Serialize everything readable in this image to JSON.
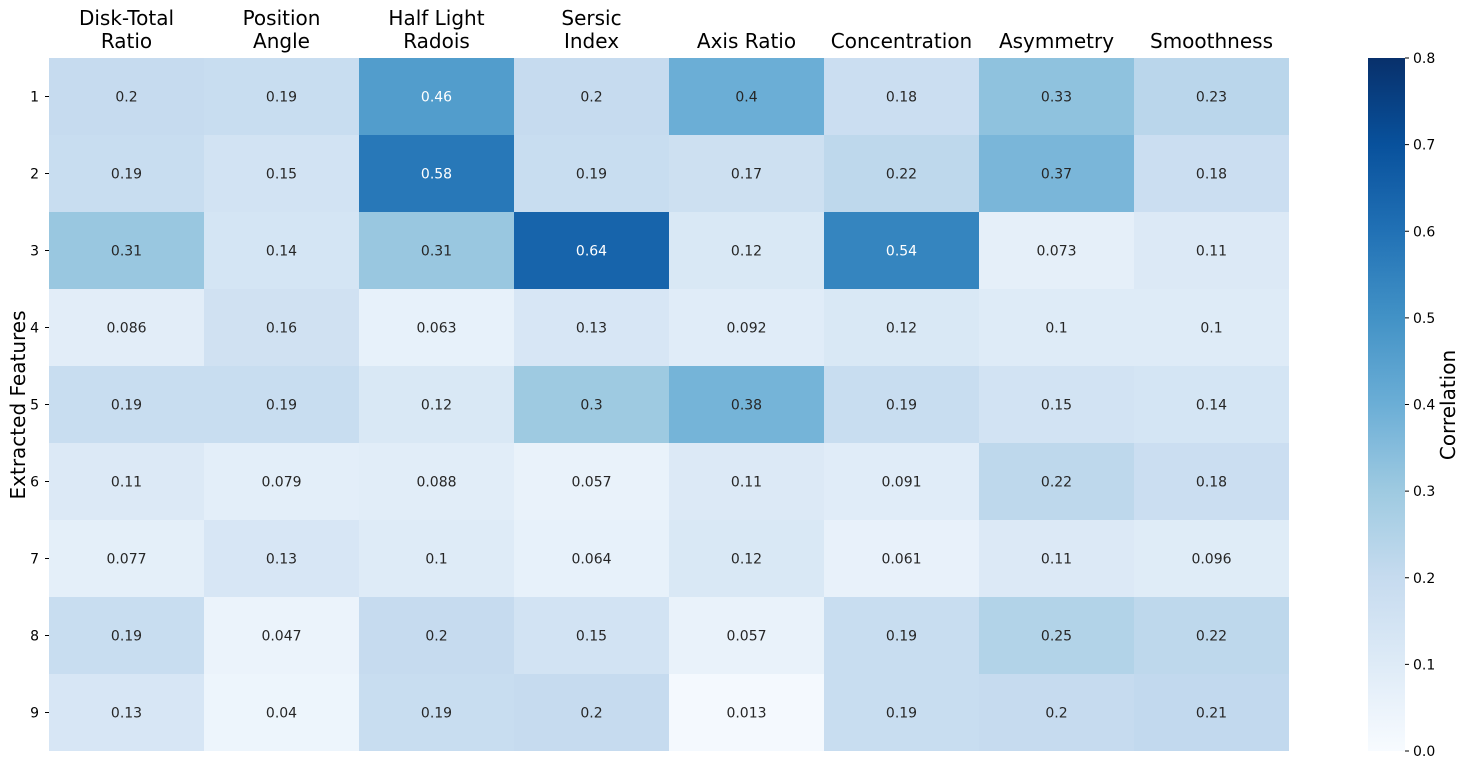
{
  "chart_data": {
    "type": "heatmap",
    "title": "",
    "xlabel": "",
    "ylabel": "Extracted Features",
    "colorbar_label": "Correlation",
    "colormap": "Blues",
    "vmin": 0.0,
    "vmax": 0.8,
    "colorbar_ticks": [
      "0.0",
      "0.1",
      "0.2",
      "0.3",
      "0.4",
      "0.5",
      "0.6",
      "0.7",
      "0.8"
    ],
    "column_label_position": "top",
    "columns": [
      [
        "Disk-Total",
        "Ratio"
      ],
      [
        "Position",
        "Angle"
      ],
      [
        "Half Light",
        "Radois"
      ],
      [
        "Sersic",
        "Index"
      ],
      [
        "Axis Ratio"
      ],
      [
        "Concentration"
      ],
      [
        "Asymmetry"
      ],
      [
        "Smoothness"
      ]
    ],
    "rows": [
      "1",
      "2",
      "3",
      "4",
      "5",
      "6",
      "7",
      "8",
      "9"
    ],
    "values": [
      [
        "0.2",
        "0.19",
        "0.46",
        "0.2",
        "0.4",
        "0.18",
        "0.33",
        "0.23"
      ],
      [
        "0.19",
        "0.15",
        "0.58",
        "0.19",
        "0.17",
        "0.22",
        "0.37",
        "0.18"
      ],
      [
        "0.31",
        "0.14",
        "0.31",
        "0.64",
        "0.12",
        "0.54",
        "0.073",
        "0.11"
      ],
      [
        "0.086",
        "0.16",
        "0.063",
        "0.13",
        "0.092",
        "0.12",
        "0.1",
        "0.1"
      ],
      [
        "0.19",
        "0.19",
        "0.12",
        "0.3",
        "0.38",
        "0.19",
        "0.15",
        "0.14"
      ],
      [
        "0.11",
        "0.079",
        "0.088",
        "0.057",
        "0.11",
        "0.091",
        "0.22",
        "0.18"
      ],
      [
        "0.077",
        "0.13",
        "0.1",
        "0.064",
        "0.12",
        "0.061",
        "0.11",
        "0.096"
      ],
      [
        "0.19",
        "0.047",
        "0.2",
        "0.15",
        "0.057",
        "0.19",
        "0.25",
        "0.22"
      ],
      [
        "0.13",
        "0.04",
        "0.19",
        "0.2",
        "0.013",
        "0.19",
        "0.2",
        "0.21"
      ]
    ]
  }
}
